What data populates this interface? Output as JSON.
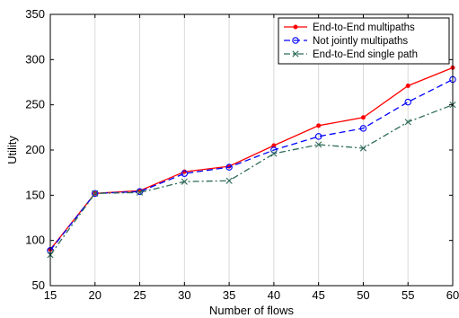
{
  "chart_data": {
    "type": "line",
    "x": [
      15,
      20,
      25,
      30,
      35,
      40,
      45,
      50,
      55,
      60
    ],
    "xlabel": "Number of flows",
    "ylabel": "Utility",
    "xlim": [
      15,
      60
    ],
    "ylim": [
      50,
      350
    ],
    "xticks": [
      15,
      20,
      25,
      30,
      35,
      40,
      45,
      50,
      55,
      60
    ],
    "yticks": [
      50,
      100,
      150,
      200,
      250,
      300,
      350
    ],
    "grid": "vertical",
    "legend_position": "top-right",
    "series": [
      {
        "name": "End-to-End multipaths",
        "color": "#ff0000",
        "line_style": "solid",
        "marker": "dot",
        "values": [
          90,
          152,
          155,
          176,
          182,
          205,
          227,
          236,
          271,
          291
        ]
      },
      {
        "name": "Not jointly multipaths",
        "color": "#0000ff",
        "line_style": "dashed",
        "marker": "circle",
        "values": [
          89,
          152,
          154,
          174,
          181,
          200,
          215,
          224,
          253,
          278
        ]
      },
      {
        "name": "End-to-End single path",
        "color": "#2e6b5a",
        "line_style": "dashdot",
        "marker": "x",
        "values": [
          84,
          152,
          153,
          165,
          166,
          196,
          206,
          202,
          231,
          250
        ]
      }
    ]
  }
}
